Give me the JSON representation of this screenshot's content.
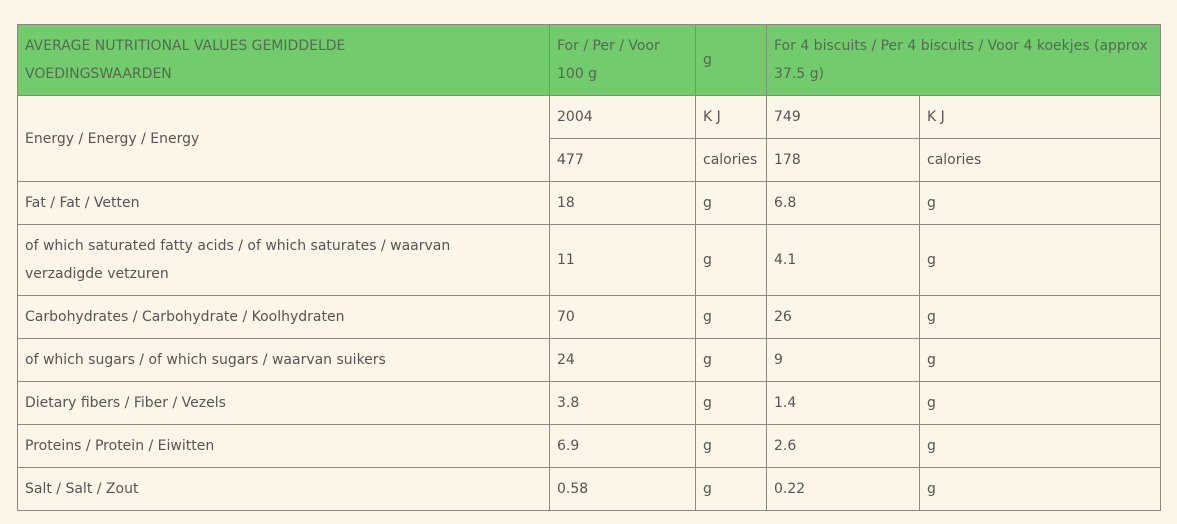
{
  "header": {
    "label": "AVERAGE NUTRITIONAL VALUES GEMIDDELDE VOEDINGSWAARDEN",
    "per100_label": "For / Per / Voor 100 g",
    "unit_label": "g",
    "perportion_label": "For 4 biscuits / Per 4 biscuits / Voor 4 koekjes (approx 37.5 g)"
  },
  "energy": {
    "name": "Energy / Energy / Energy",
    "kj_100": "2004",
    "kj_unit": "K J",
    "kj_portion": "749",
    "kj_unit_portion": "K J",
    "cal_100": "477",
    "cal_unit": "calories",
    "cal_portion": "178",
    "cal_unit_portion": "calories"
  },
  "rows": [
    {
      "name": "Fat / Fat / Vetten",
      "v100": "18",
      "u100": "g",
      "vportion": "6.8",
      "uportion": "g"
    },
    {
      "name": "of which saturated fatty acids / of which saturates / waarvan verzadigde vetzuren",
      "v100": "11",
      "u100": "g",
      "vportion": "4.1",
      "uportion": "g"
    },
    {
      "name": "Carbohydrates / Carbohydrate / Koolhydraten",
      "v100": "70",
      "u100": "g",
      "vportion": "26",
      "uportion": "g"
    },
    {
      "name": "of which sugars / of which sugars / waarvan suikers",
      "v100": "24",
      "u100": "g",
      "vportion": "9",
      "uportion": "g"
    },
    {
      "name": "Dietary fibers / Fiber / Vezels",
      "v100": "3.8",
      "u100": "g",
      "vportion": "1.4",
      "uportion": "g"
    },
    {
      "name": "Proteins / Protein / Eiwitten",
      "v100": "6.9",
      "u100": "g",
      "vportion": "2.6",
      "uportion": "g"
    },
    {
      "name": "Salt / Salt / Zout",
      "v100": "0.58",
      "u100": "g",
      "vportion": "0.22",
      "uportion": "g"
    }
  ],
  "colors": {
    "background": "#fdf6e8",
    "header_bg": "#72cc6e",
    "border": "#8a8a7e",
    "text": "#555555"
  }
}
